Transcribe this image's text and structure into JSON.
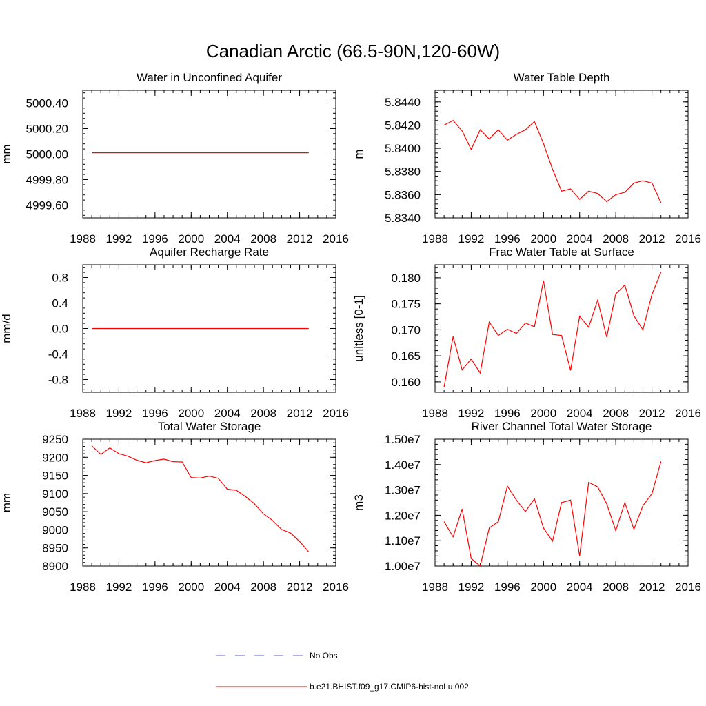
{
  "figure": {
    "title": "Canadian Arctic (66.5-90N,120-60W)"
  },
  "legend": {
    "items": [
      {
        "label": "No Obs",
        "style": "dashed",
        "color": "#5b5bd6"
      },
      {
        "label": "b.e21.BHIST.f09_g17.CMIP6-hist-noLu.002",
        "style": "solid",
        "color": "#ff0000"
      }
    ]
  },
  "chart_data": [
    {
      "type": "line",
      "title": "Water in Unconfined Aquifer",
      "ylabel": "mm",
      "xlim": [
        1988,
        2016
      ],
      "xticks": [
        1988,
        1992,
        1996,
        2000,
        2004,
        2008,
        2012,
        2016
      ],
      "ylim": [
        4999.5,
        5000.5
      ],
      "yticks": [
        4999.6,
        4999.8,
        5000.0,
        5000.2,
        5000.4
      ],
      "ytick_labels": [
        "4999.60",
        "4999.80",
        "5000.00",
        "5000.20",
        "5000.40"
      ],
      "series": [
        {
          "color": "#ff0000",
          "x": [
            1989,
            1990,
            1991,
            1992,
            1993,
            1994,
            1995,
            1996,
            1997,
            1998,
            1999,
            2000,
            2001,
            2002,
            2003,
            2004,
            2005,
            2006,
            2007,
            2008,
            2009,
            2010,
            2011,
            2012,
            2013
          ],
          "y": [
            5000.01,
            5000.01,
            5000.01,
            5000.01,
            5000.01,
            5000.01,
            5000.01,
            5000.01,
            5000.01,
            5000.01,
            5000.01,
            5000.01,
            5000.01,
            5000.01,
            5000.01,
            5000.01,
            5000.01,
            5000.01,
            5000.01,
            5000.01,
            5000.01,
            5000.01,
            5000.01,
            5000.01,
            5000.01
          ]
        }
      ]
    },
    {
      "type": "line",
      "title": "Water Table Depth",
      "ylabel": "m",
      "xlim": [
        1988,
        2016
      ],
      "xticks": [
        1988,
        1992,
        1996,
        2000,
        2004,
        2008,
        2012,
        2016
      ],
      "ylim": [
        5.834,
        5.845
      ],
      "yticks": [
        5.834,
        5.836,
        5.838,
        5.84,
        5.842,
        5.844
      ],
      "ytick_labels": [
        "5.8340",
        "5.8360",
        "5.8380",
        "5.8400",
        "5.8420",
        "5.8440"
      ],
      "series": [
        {
          "color": "#ff0000",
          "x": [
            1989,
            1990,
            1991,
            1992,
            1993,
            1994,
            1995,
            1996,
            1997,
            1998,
            1999,
            2000,
            2001,
            2002,
            2003,
            2004,
            2005,
            2006,
            2007,
            2008,
            2009,
            2010,
            2011,
            2012,
            2013
          ],
          "y": [
            5.842,
            5.8424,
            5.8415,
            5.8399,
            5.8416,
            5.8408,
            5.8416,
            5.8407,
            5.8412,
            5.8416,
            5.8423,
            5.8404,
            5.8382,
            5.8363,
            5.8365,
            5.8356,
            5.8363,
            5.8361,
            5.8354,
            5.836,
            5.8362,
            5.837,
            5.8372,
            5.837,
            5.8353
          ]
        }
      ]
    },
    {
      "type": "line",
      "title": "Aquifer Recharge Rate",
      "ylabel": "mm/d",
      "xlim": [
        1988,
        2016
      ],
      "xticks": [
        1988,
        1992,
        1996,
        2000,
        2004,
        2008,
        2012,
        2016
      ],
      "ylim": [
        -1.0,
        1.0
      ],
      "yticks": [
        -0.8,
        -0.4,
        0.0,
        0.4,
        0.8
      ],
      "ytick_labels": [
        "-0.8",
        "-0.4",
        "0.0",
        "0.4",
        "0.8"
      ],
      "series": [
        {
          "color": "#ff0000",
          "x": [
            1989,
            1990,
            1991,
            1992,
            1993,
            1994,
            1995,
            1996,
            1997,
            1998,
            1999,
            2000,
            2001,
            2002,
            2003,
            2004,
            2005,
            2006,
            2007,
            2008,
            2009,
            2010,
            2011,
            2012,
            2013
          ],
          "y": [
            0,
            0,
            0,
            0,
            0,
            0,
            0,
            0,
            0,
            0,
            0,
            0,
            0,
            0,
            0,
            0,
            0,
            0,
            0,
            0,
            0,
            0,
            0,
            0,
            0
          ]
        }
      ]
    },
    {
      "type": "line",
      "title": "Frac Water Table at Surface",
      "ylabel": "unitless [0-1]",
      "xlim": [
        1988,
        2016
      ],
      "xticks": [
        1988,
        1992,
        1996,
        2000,
        2004,
        2008,
        2012,
        2016
      ],
      "ylim": [
        0.158,
        0.1825
      ],
      "yticks": [
        0.16,
        0.165,
        0.17,
        0.175,
        0.18
      ],
      "ytick_labels": [
        "0.160",
        "0.165",
        "0.170",
        "0.175",
        "0.180"
      ],
      "series": [
        {
          "color": "#ff0000",
          "x": [
            1989,
            1990,
            1991,
            1992,
            1993,
            1994,
            1995,
            1996,
            1997,
            1998,
            1999,
            2000,
            2001,
            2002,
            2003,
            2004,
            2005,
            2006,
            2007,
            2008,
            2009,
            2010,
            2011,
            2012,
            2013
          ],
          "y": [
            0.159,
            0.1687,
            0.1623,
            0.1644,
            0.1617,
            0.1715,
            0.1689,
            0.1701,
            0.1693,
            0.1713,
            0.1706,
            0.1794,
            0.1691,
            0.1689,
            0.1622,
            0.1726,
            0.1705,
            0.1757,
            0.1686,
            0.1769,
            0.1786,
            0.1727,
            0.17,
            0.1768,
            0.1811
          ]
        }
      ]
    },
    {
      "type": "line",
      "title": "Total Water Storage",
      "ylabel": "mm",
      "xlim": [
        1988,
        2016
      ],
      "xticks": [
        1988,
        1992,
        1996,
        2000,
        2004,
        2008,
        2012,
        2016
      ],
      "ylim": [
        8900,
        9250
      ],
      "yticks": [
        8900,
        8950,
        9000,
        9050,
        9100,
        9150,
        9200,
        9250
      ],
      "ytick_labels": [
        "8900",
        "8950",
        "9000",
        "9050",
        "9100",
        "9150",
        "9200",
        "9250"
      ],
      "series": [
        {
          "color": "#ff0000",
          "x": [
            1989,
            1990,
            1991,
            1992,
            1993,
            1994,
            1995,
            1996,
            1997,
            1998,
            1999,
            2000,
            2001,
            2002,
            2003,
            2004,
            2005,
            2006,
            2007,
            2008,
            2009,
            2010,
            2011,
            2012,
            2013
          ],
          "y": [
            9232,
            9208,
            9226,
            9210,
            9203,
            9192,
            9185,
            9191,
            9195,
            9188,
            9187,
            9144,
            9143,
            9148,
            9142,
            9112,
            9109,
            9092,
            9072,
            9044,
            9026,
            9001,
            8991,
            8968,
            8939
          ]
        }
      ]
    },
    {
      "type": "line",
      "title": "River Channel Total Water Storage",
      "ylabel": "m3",
      "xlim": [
        1988,
        2016
      ],
      "xticks": [
        1988,
        1992,
        1996,
        2000,
        2004,
        2008,
        2012,
        2016
      ],
      "ylim": [
        10000000,
        15000000
      ],
      "yticks": [
        10000000,
        11000000,
        12000000,
        13000000,
        14000000,
        15000000
      ],
      "ytick_labels": [
        "1.00e7",
        "1.10e7",
        "1.20e7",
        "1.30e7",
        "1.40e7",
        "1.50e7"
      ],
      "series": [
        {
          "color": "#ff0000",
          "x": [
            1989,
            1990,
            1991,
            1992,
            1993,
            1994,
            1995,
            1996,
            1997,
            1998,
            1999,
            2000,
            2001,
            2002,
            2003,
            2004,
            2005,
            2006,
            2007,
            2008,
            2009,
            2010,
            2011,
            2012,
            2013
          ],
          "y": [
            11750000,
            11150000,
            12250000,
            10300000,
            10000000,
            11500000,
            11750000,
            13150000,
            12600000,
            12150000,
            12650000,
            11500000,
            10980000,
            12500000,
            12600000,
            10400000,
            13300000,
            13120000,
            12450000,
            11400000,
            12500000,
            11450000,
            12380000,
            12850000,
            14120000
          ]
        }
      ]
    }
  ]
}
